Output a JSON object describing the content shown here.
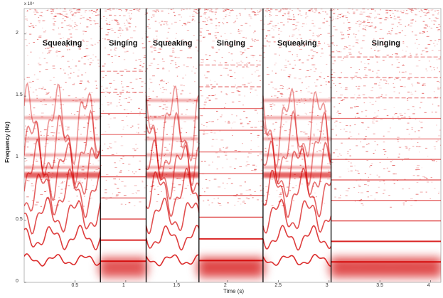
{
  "chart_data": {
    "type": "heatmap",
    "subtype": "spectrogram",
    "xlabel": "Time (s)",
    "ylabel": "Frequency (Hz)",
    "y_exponent_label": "x 10⁴",
    "xlim": [
      0,
      4.1
    ],
    "ylim": [
      0,
      22050
    ],
    "x_ticks": [
      0.5,
      1,
      1.5,
      2,
      2.5,
      3,
      3.5,
      4
    ],
    "x_tick_labels": [
      "0.5",
      "1",
      "1.5",
      "2",
      "2.5",
      "3",
      "3.5",
      "4"
    ],
    "y_ticks": [
      0,
      5000,
      10000,
      15000,
      20000
    ],
    "y_tick_labels": [
      "0",
      "0.5",
      "1",
      "1.5",
      "2"
    ],
    "color": "#d40000",
    "segments": [
      {
        "label": "Squeaking",
        "start": 0.0,
        "end": 0.75
      },
      {
        "label": "Singing",
        "start": 0.75,
        "end": 1.2
      },
      {
        "label": "Squeaking",
        "start": 1.2,
        "end": 1.72
      },
      {
        "label": "Singing",
        "start": 1.72,
        "end": 2.35
      },
      {
        "label": "Squeaking",
        "start": 2.35,
        "end": 3.02
      },
      {
        "label": "Singing",
        "start": 3.02,
        "end": 4.1
      }
    ],
    "boundaries": [
      0.75,
      1.2,
      1.72,
      2.35,
      3.02
    ]
  }
}
